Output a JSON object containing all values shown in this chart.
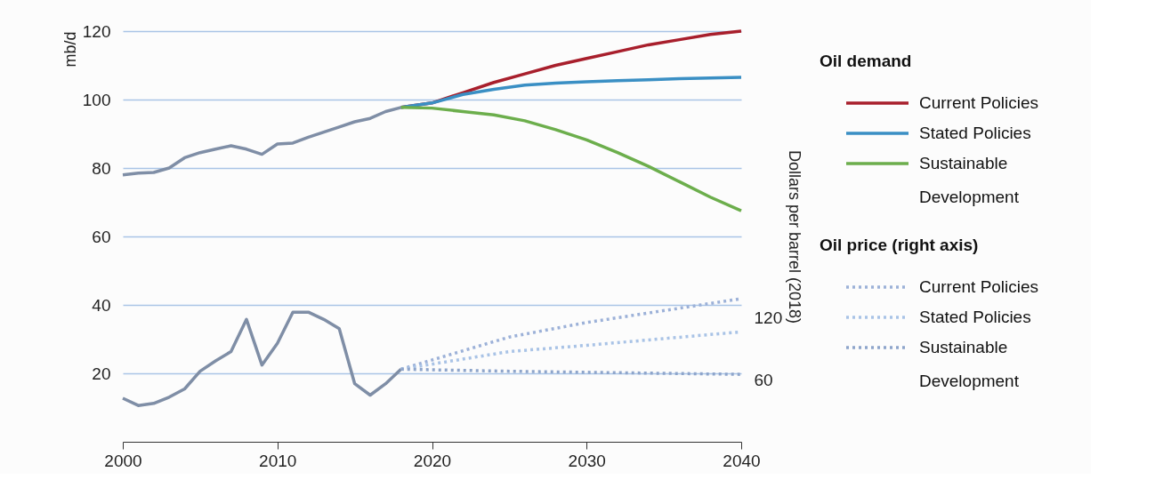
{
  "chart_data": {
    "type": "line",
    "ylabel": "mb/d",
    "y2label": "Dollars per barrel (2018)",
    "legend_title": "Oil demand",
    "annotations": [
      "Oil price (right axis)"
    ],
    "xlim": [
      2000,
      2040
    ],
    "xticks": [
      2000,
      2010,
      2020,
      2030,
      2040
    ],
    "ylim": [
      0,
      120
    ],
    "yticks": [
      20,
      40,
      60,
      80,
      100,
      120
    ],
    "y2lim": [
      0,
      396
    ],
    "y2ticks": [
      60,
      120
    ],
    "grid": "y",
    "legend": "right",
    "marker": "none",
    "series": [
      {
        "color": "#7f8ea6",
        "line_style": "solid",
        "x": [
          2000,
          2001,
          2002,
          2003,
          2004,
          2005,
          2006,
          2007,
          2008,
          2009,
          2010,
          2011,
          2012,
          2013,
          2014,
          2015,
          2016,
          2017,
          2018
        ],
        "values": [
          78,
          78.5,
          78.7,
          80,
          83,
          84.5,
          85.5,
          86.5,
          85.5,
          84,
          87,
          87.3,
          89,
          90.5,
          92,
          93.5,
          94.5,
          96.5,
          97.7
        ]
      },
      {
        "name": "Current Policies",
        "color": "#a81f2c",
        "line_style": "solid",
        "x": [
          2018,
          2020,
          2022,
          2024,
          2026,
          2028,
          2030,
          2032,
          2034,
          2036,
          2038,
          2040
        ],
        "values": [
          97.7,
          99,
          102,
          105,
          107.5,
          110,
          112,
          114,
          116,
          117.5,
          119,
          120
        ]
      },
      {
        "name": "Stated Policies",
        "color": "#3a8fc4",
        "line_style": "solid",
        "x": [
          2018,
          2020,
          2022,
          2024,
          2026,
          2028,
          2030,
          2032,
          2034,
          2036,
          2038,
          2040
        ],
        "values": [
          97.7,
          99,
          101.5,
          103,
          104.2,
          104.8,
          105.2,
          105.5,
          105.8,
          106.1,
          106.3,
          106.5
        ]
      },
      {
        "name": "Sustainable Development",
        "color": "#6cae4c",
        "line_style": "solid",
        "x": [
          2018,
          2020,
          2022,
          2024,
          2026,
          2028,
          2030,
          2032,
          2034,
          2036,
          2038,
          2040
        ],
        "values": [
          97.7,
          97.5,
          96.5,
          95.5,
          93.8,
          91.2,
          88.2,
          84.5,
          80.5,
          76,
          71.5,
          67.5
        ]
      },
      {
        "axis": "y2",
        "color": "#7f8ea6",
        "line_style": "solid",
        "x": [
          2000,
          2001,
          2002,
          2003,
          2004,
          2005,
          2006,
          2007,
          2008,
          2009,
          2010,
          2011,
          2012,
          2013,
          2014,
          2015,
          2016,
          2017,
          2018
        ],
        "values": [
          42,
          35,
          37,
          43,
          51,
          68,
          78,
          87,
          118,
          74,
          95,
          125,
          125,
          118,
          109,
          56,
          45,
          56,
          70
        ]
      },
      {
        "axis": "y2",
        "name": "Current Policies",
        "color": "#9cb1d8",
        "line_style": "dotted",
        "x": [
          2018,
          2025,
          2030,
          2040
        ],
        "values": [
          70,
          101,
          115,
          138
        ]
      },
      {
        "axis": "y2",
        "name": "Stated Policies",
        "color": "#a9c3e6",
        "line_style": "dotted",
        "x": [
          2018,
          2025,
          2030,
          2040
        ],
        "values": [
          70,
          87,
          93,
          106
        ]
      },
      {
        "axis": "y2",
        "name": "Sustainable Development",
        "color": "#8ea5cb",
        "line_style": "dotted",
        "x": [
          2018,
          2025,
          2030,
          2040
        ],
        "values": [
          70,
          68,
          67,
          65
        ]
      }
    ]
  }
}
